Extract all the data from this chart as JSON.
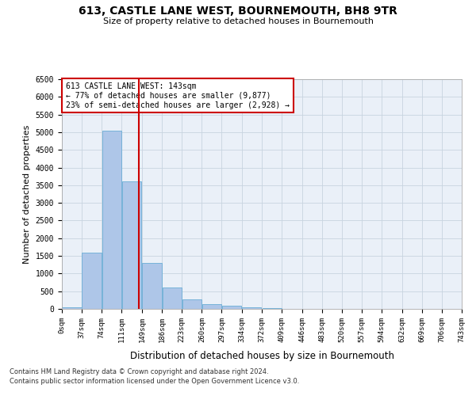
{
  "title1": "613, CASTLE LANE WEST, BOURNEMOUTH, BH8 9TR",
  "title2": "Size of property relative to detached houses in Bournemouth",
  "xlabel": "Distribution of detached houses by size in Bournemouth",
  "ylabel": "Number of detached properties",
  "annotation_title": "613 CASTLE LANE WEST: 143sqm",
  "annotation_line1": "← 77% of detached houses are smaller (9,877)",
  "annotation_line2": "23% of semi-detached houses are larger (2,928) →",
  "footer1": "Contains HM Land Registry data © Crown copyright and database right 2024.",
  "footer2": "Contains public sector information licensed under the Open Government Licence v3.0.",
  "property_size": 143,
  "bin_edges": [
    0,
    37,
    74,
    111,
    149,
    186,
    223,
    260,
    297,
    334,
    372,
    409,
    446,
    483,
    520,
    557,
    594,
    632,
    669,
    706,
    743
  ],
  "bar_heights": [
    50,
    1600,
    5050,
    3600,
    1300,
    600,
    270,
    130,
    80,
    50,
    30,
    10,
    5,
    3,
    2,
    1,
    1,
    0,
    0,
    0
  ],
  "bar_color": "#aec6e8",
  "bar_edge_color": "#6aadd5",
  "vline_color": "#cc0000",
  "vline_x": 143,
  "annotation_box_color": "#cc0000",
  "background_color": "#ffffff",
  "axes_background": "#eaf0f8",
  "grid_color": "#c8d4e0",
  "ylim": [
    0,
    6500
  ],
  "yticks": [
    0,
    500,
    1000,
    1500,
    2000,
    2500,
    3000,
    3500,
    4000,
    4500,
    5000,
    5500,
    6000,
    6500
  ]
}
